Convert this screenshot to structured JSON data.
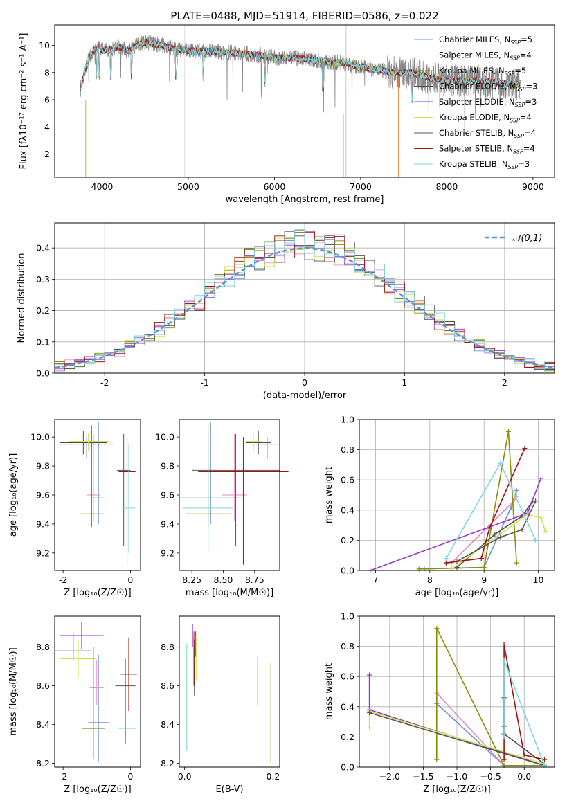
{
  "colors": [
    "#6495ed",
    "#e377c2",
    "#bcbd22",
    "#2ca02c",
    "#9b30d0",
    "#d4f542",
    "#404040",
    "#aa1111",
    "#7fd8e0"
  ],
  "model_colors": [
    "#6a8fd8",
    "#e78ac3",
    "#8c8c00",
    "#4a4a4a",
    "#9932cc",
    "#c8e64c",
    "#555555",
    "#a01010",
    "#7dd6de"
  ],
  "chart_data": [
    {
      "type": "line",
      "title": "PLATE=0488, MJD=51914, FIBERID=0586, z=0.022",
      "xlabel": "wavelength [Angstrom, rest frame]",
      "ylabel": "Flux [fλ10⁻¹⁷ erg cm⁻² s⁻¹ A⁻¹]",
      "xlim": [
        3450,
        9250
      ],
      "ylim": [
        0.3,
        11.5
      ],
      "xticks": [
        "4000",
        "5000",
        "6000",
        "7000",
        "8000",
        "9000"
      ],
      "yticks": [
        "2",
        "4",
        "6",
        "8",
        "10"
      ],
      "legend_position": "top-right",
      "grid": false,
      "continuum": {
        "x": [
          3750,
          3800,
          3850,
          3900,
          3950,
          4000,
          4100,
          4200,
          4300,
          4400,
          4500,
          4600,
          4700,
          4800,
          4900,
          5000,
          5200,
          5400,
          5600,
          5800,
          6000,
          6200,
          6400,
          6600,
          6800,
          7000,
          7200,
          7400,
          7600,
          7800,
          8000,
          8200,
          8400,
          8600,
          8800,
          8850
        ],
        "y": [
          6.8,
          8.2,
          9.0,
          9.6,
          9.8,
          9.6,
          9.7,
          9.9,
          9.6,
          10.0,
          10.2,
          10.1,
          10.0,
          9.8,
          9.7,
          9.6,
          9.6,
          9.5,
          9.4,
          9.3,
          9.1,
          9.1,
          9.0,
          8.8,
          8.7,
          8.4,
          8.2,
          8.0,
          8.0,
          7.6,
          7.4,
          7.4,
          7.4,
          7.2,
          7.1,
          7.2
        ]
      },
      "series": [
        {
          "name": "Chabrier MILES, N_SSP=5"
        },
        {
          "name": "Salpeter MILES, N_SSP=4"
        },
        {
          "name": "Kroupa MILES, N_SSP=5"
        },
        {
          "name": "Chabrier ELODIE, N_SSP=3"
        },
        {
          "name": "Salpeter ELODIE, N_SSP=3"
        },
        {
          "name": "Kroupa ELODIE, N_SSP=4"
        },
        {
          "name": "Chabrier STELIB, N_SSP=4"
        },
        {
          "name": "Salpeter STELIB, N_SSP=4"
        },
        {
          "name": "Kroupa STELIB, N_SSP=3"
        }
      ]
    },
    {
      "type": "histogram",
      "xlabel": "(data-model)/error",
      "ylabel": "Normed distribution",
      "xlim": [
        -2.5,
        2.5
      ],
      "ylim": [
        0,
        0.48
      ],
      "xticks": [
        "-2",
        "-1",
        "0",
        "1",
        "2"
      ],
      "yticks": [
        "0.0",
        "0.1",
        "0.2",
        "0.3",
        "0.4"
      ],
      "legend": "𝒩(0,1)",
      "grid": true,
      "bin_width": 0.1
    },
    {
      "type": "scatter",
      "xlabel": "Z [log₁₀(Z/Z☉)]",
      "ylabel": "age  [log₁₀(age/yr)]",
      "xlim": [
        -2.25,
        0.3
      ],
      "ylim": [
        9.08,
        10.12
      ],
      "xticks": [
        "-2",
        "0"
      ],
      "yticks": [
        "9.2",
        "9.4",
        "9.6",
        "9.8",
        "10.0"
      ],
      "points": [
        {
          "x": -0.95,
          "y": 9.58,
          "xerr": 0.2,
          "ylo": 9.4,
          "yhi": 10.1
        },
        {
          "x": -1.1,
          "y": 9.6,
          "xerr": 0.2,
          "ylo": 9.42,
          "yhi": 10.02
        },
        {
          "x": -1.15,
          "y": 9.47,
          "xerr": 0.35,
          "ylo": 9.38,
          "yhi": 10.08
        },
        {
          "x": -1.4,
          "y": 9.96,
          "xerr": 0.7,
          "ylo": 9.88,
          "yhi": 10.04
        },
        {
          "x": -1.3,
          "y": 9.95,
          "xerr": 0.8,
          "ylo": 9.85,
          "yhi": 10.0
        },
        {
          "x": -1.25,
          "y": 9.97,
          "xerr": 0.6,
          "ylo": 9.9,
          "yhi": 10.03
        },
        {
          "x": -0.2,
          "y": 9.77,
          "xerr": 0.2,
          "ylo": 9.25,
          "yhi": 10.02
        },
        {
          "x": -0.1,
          "y": 9.76,
          "xerr": 0.25,
          "ylo": 9.12,
          "yhi": 10.0
        },
        {
          "x": -0.05,
          "y": 9.51,
          "xerr": 0.2,
          "ylo": 9.2,
          "yhi": 9.95
        }
      ]
    },
    {
      "type": "scatter",
      "xlabel": "mass [log₁₀(M/M☉)]",
      "ylabel": "",
      "xlim": [
        8.15,
        8.95
      ],
      "ylim": [
        9.08,
        10.12
      ],
      "xticks": [
        "8.25",
        "8.50",
        "8.75"
      ],
      "yticks": [
        "9.2",
        "9.4",
        "9.6",
        "9.8",
        "10.0"
      ],
      "points": [
        {
          "x": 8.4,
          "y": 9.58,
          "xerr": 0.25,
          "ylo": 9.4,
          "yhi": 10.1
        },
        {
          "x": 8.59,
          "y": 9.6,
          "xerr": 0.1,
          "ylo": 9.42,
          "yhi": 10.02
        },
        {
          "x": 8.38,
          "y": 9.47,
          "xerr": 0.18,
          "ylo": 9.38,
          "yhi": 10.08
        },
        {
          "x": 8.78,
          "y": 9.96,
          "xerr": 0.1,
          "ylo": 9.88,
          "yhi": 10.04
        },
        {
          "x": 8.85,
          "y": 9.95,
          "xerr": 0.1,
          "ylo": 9.85,
          "yhi": 10.0
        },
        {
          "x": 8.74,
          "y": 9.97,
          "xerr": 0.06,
          "ylo": 9.9,
          "yhi": 10.03
        },
        {
          "x": 8.6,
          "y": 9.77,
          "xerr": 0.35,
          "ylo": 9.25,
          "yhi": 10.02
        },
        {
          "x": 8.66,
          "y": 9.76,
          "xerr": 0.36,
          "ylo": 9.12,
          "yhi": 10.0
        },
        {
          "x": 8.38,
          "y": 9.51,
          "xerr": 0.2,
          "ylo": 9.2,
          "yhi": 9.95
        }
      ]
    },
    {
      "type": "line",
      "xlabel": "age  [log₁₀(age/yr)]",
      "ylabel": "mass weight",
      "xlim": [
        6.7,
        10.3
      ],
      "ylim": [
        0,
        1.0
      ],
      "xticks": [
        "7",
        "8",
        "9",
        "10"
      ],
      "yticks": [
        "0.0",
        "0.2",
        "0.4",
        "0.6",
        "0.8",
        "1.0"
      ],
      "grid": true,
      "series": [
        {
          "x": [
            7.9,
            9.0,
            9.5,
            9.6
          ],
          "y": [
            0.01,
            0.02,
            0.42,
            0.53
          ]
        },
        {
          "x": [
            8.4,
            9.55,
            9.6
          ],
          "y": [
            0.05,
            0.46,
            0.49
          ]
        },
        {
          "x": [
            7.8,
            9.0,
            9.45,
            9.6
          ],
          "y": [
            0.01,
            0.02,
            0.92,
            0.05
          ]
        },
        {
          "x": [
            8.5,
            9.2,
            9.7,
            9.9
          ],
          "y": [
            0.02,
            0.24,
            0.36,
            0.46
          ]
        },
        {
          "x": [
            6.9,
            9.8,
            10.05
          ],
          "y": [
            0.0,
            0.38,
            0.61
          ]
        },
        {
          "x": [
            8.4,
            9.8,
            10.05,
            10.13
          ],
          "y": [
            0.01,
            0.37,
            0.35,
            0.26
          ]
        },
        {
          "x": [
            8.5,
            9.3,
            9.7,
            9.95
          ],
          "y": [
            0.06,
            0.22,
            0.27,
            0.46
          ]
        },
        {
          "x": [
            8.3,
            8.95,
            9.1,
            9.75
          ],
          "y": [
            0.05,
            0.08,
            0.28,
            0.81
          ]
        },
        {
          "x": [
            8.3,
            9.3,
            9.95
          ],
          "y": [
            0.08,
            0.71,
            0.2
          ]
        }
      ]
    },
    {
      "type": "scatter",
      "xlabel": "Z [log₁₀(Z/Z☉)]",
      "ylabel": "mass [log₁₀(M/M☉)]",
      "xlim": [
        -2.25,
        0.3
      ],
      "ylim": [
        8.18,
        8.96
      ],
      "xticks": [
        "-2",
        "0"
      ],
      "yticks": [
        "8.2",
        "8.4",
        "8.6",
        "8.8"
      ],
      "points": [
        {
          "x": -0.95,
          "y": 8.41,
          "xerr": 0.3,
          "ylo": 8.21,
          "yhi": 8.76
        },
        {
          "x": -1.0,
          "y": 8.59,
          "xerr": 0.2,
          "ylo": 8.5,
          "yhi": 8.73
        },
        {
          "x": -1.1,
          "y": 8.38,
          "xerr": 0.35,
          "ylo": 8.22,
          "yhi": 8.8
        },
        {
          "x": -1.7,
          "y": 8.78,
          "xerr": 0.55,
          "ylo": 8.73,
          "yhi": 8.87
        },
        {
          "x": -1.45,
          "y": 8.86,
          "xerr": 0.65,
          "ylo": 8.79,
          "yhi": 8.93
        },
        {
          "x": -1.55,
          "y": 8.74,
          "xerr": 0.55,
          "ylo": 8.64,
          "yhi": 8.83
        },
        {
          "x": -0.15,
          "y": 8.6,
          "xerr": 0.3,
          "ylo": 8.3,
          "yhi": 8.74
        },
        {
          "x": -0.05,
          "y": 8.66,
          "xerr": 0.25,
          "ylo": 8.47,
          "yhi": 8.85
        },
        {
          "x": -0.1,
          "y": 8.38,
          "xerr": 0.25,
          "ylo": 8.25,
          "yhi": 8.58
        }
      ]
    },
    {
      "type": "scatter",
      "xlabel": "E(B-V)",
      "ylabel": "",
      "xlim": [
        -0.012,
        0.215
      ],
      "ylim": [
        8.18,
        8.96
      ],
      "xticks": [
        "0.0",
        "0.2"
      ],
      "yticks": [
        "8.2",
        "8.4",
        "8.6",
        "8.8"
      ],
      "points": [
        {
          "x": 0.003,
          "ylo": 8.25,
          "yhi": 8.78
        },
        {
          "x": 0.165,
          "ylo": 8.5,
          "yhi": 8.75
        },
        {
          "x": 0.195,
          "ylo": 8.2,
          "yhi": 8.72
        },
        {
          "x": 0.025,
          "ylo": 8.75,
          "yhi": 8.88
        },
        {
          "x": 0.018,
          "ylo": 8.8,
          "yhi": 8.92
        },
        {
          "x": 0.026,
          "ylo": 8.63,
          "yhi": 8.86
        },
        {
          "x": 0.022,
          "ylo": 8.55,
          "yhi": 8.84
        },
        {
          "x": 0.021,
          "ylo": 8.6,
          "yhi": 8.88
        },
        {
          "x": 0.005,
          "ylo": 8.27,
          "yhi": 8.82
        }
      ]
    },
    {
      "type": "line",
      "xlabel": "Z [log₁₀(Z/Z☉)]",
      "ylabel": "mass weight",
      "xlim": [
        -2.45,
        0.45
      ],
      "ylim": [
        0,
        1.0
      ],
      "xticks": [
        "−2.0",
        "−1.5",
        "−1.0",
        "−0.5",
        "0.0"
      ],
      "yticks": [
        "0.0",
        "0.2",
        "0.4",
        "0.6",
        "0.8",
        "1.0"
      ],
      "grid": true,
      "series": [
        {
          "x": [
            -1.3,
            -1.3,
            -0.3,
            0.3
          ],
          "y": [
            0.53,
            0.42,
            0.01,
            0.01
          ]
        },
        {
          "x": [
            -1.3,
            -0.3,
            0.3
          ],
          "y": [
            0.49,
            0.01,
            0.01
          ]
        },
        {
          "x": [
            -1.3,
            -1.3,
            -0.3,
            0.3
          ],
          "y": [
            0.05,
            0.92,
            0.01,
            0.01
          ]
        },
        {
          "x": [
            -0.3,
            -0.3,
            -0.3,
            0.3
          ],
          "y": [
            0.46,
            0.27,
            0.22,
            0.02
          ]
        },
        {
          "x": [
            -2.3,
            -2.3,
            0.3
          ],
          "y": [
            0.61,
            0.38,
            0.01
          ]
        },
        {
          "x": [
            -2.3,
            -2.3,
            0.3
          ],
          "y": [
            0.26,
            0.37,
            0.02
          ]
        },
        {
          "x": [
            -2.3,
            0.3
          ],
          "y": [
            0.36,
            0.01
          ]
        },
        {
          "x": [
            -0.3,
            -0.3,
            0.0,
            0.3
          ],
          "y": [
            0.05,
            0.81,
            0.08,
            0.05
          ]
        },
        {
          "x": [
            -0.3,
            -0.3,
            0.3
          ],
          "y": [
            0.2,
            0.71,
            0.01
          ]
        }
      ]
    }
  ]
}
